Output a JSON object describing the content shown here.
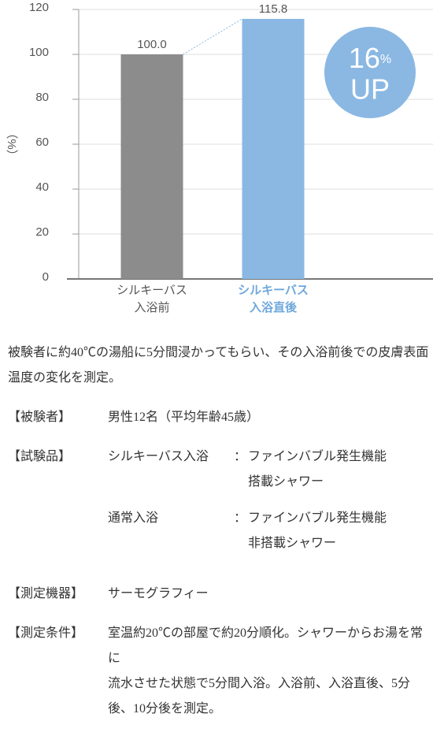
{
  "chart_data": {
    "type": "bar",
    "y_label": "（%）",
    "categories": [
      "シルキーバス\n入浴前",
      "シルキーバス\n入浴直後"
    ],
    "category_label_colors": [
      "#555555",
      "#6fa8dc"
    ],
    "values": [
      100.0,
      115.8
    ],
    "value_labels": [
      "100.0",
      "115.8"
    ],
    "colors": [
      "#8c8c8c",
      "#8ab8e3"
    ],
    "ylim": [
      0,
      120
    ],
    "yticks": [
      0,
      20,
      40,
      60,
      80,
      100,
      120
    ],
    "grid": true,
    "badge": {
      "number": "16",
      "unit": "%",
      "text": "UP",
      "color": "#8ab8e3"
    }
  },
  "description": "被験者に約40℃の湯船に5分間浸かってもらい、その入浴前後での皮膚表面温度の変化を測定。",
  "details": [
    {
      "label": "【被験者】",
      "value": "男性12名（平均年齢45歳）"
    },
    {
      "label": "【試験品】",
      "items": [
        {
          "name": "シルキーバス入浴",
          "sep": "：",
          "desc": "ファインバブル発生機能\n搭載シャワー"
        },
        {
          "name": "通常入浴",
          "sep": "：",
          "desc": "ファインバブル発生機能\n非搭載シャワー"
        }
      ]
    },
    {
      "label": "【測定機器】",
      "value": "サーモグラフィー"
    },
    {
      "label": "【測定条件】",
      "value": "室温約20℃の部屋で約20分順化。シャワーからお湯を常に\n流水させた状態で5分間入浴。入浴前、入浴直後、5分後、10分後を測定。"
    }
  ]
}
